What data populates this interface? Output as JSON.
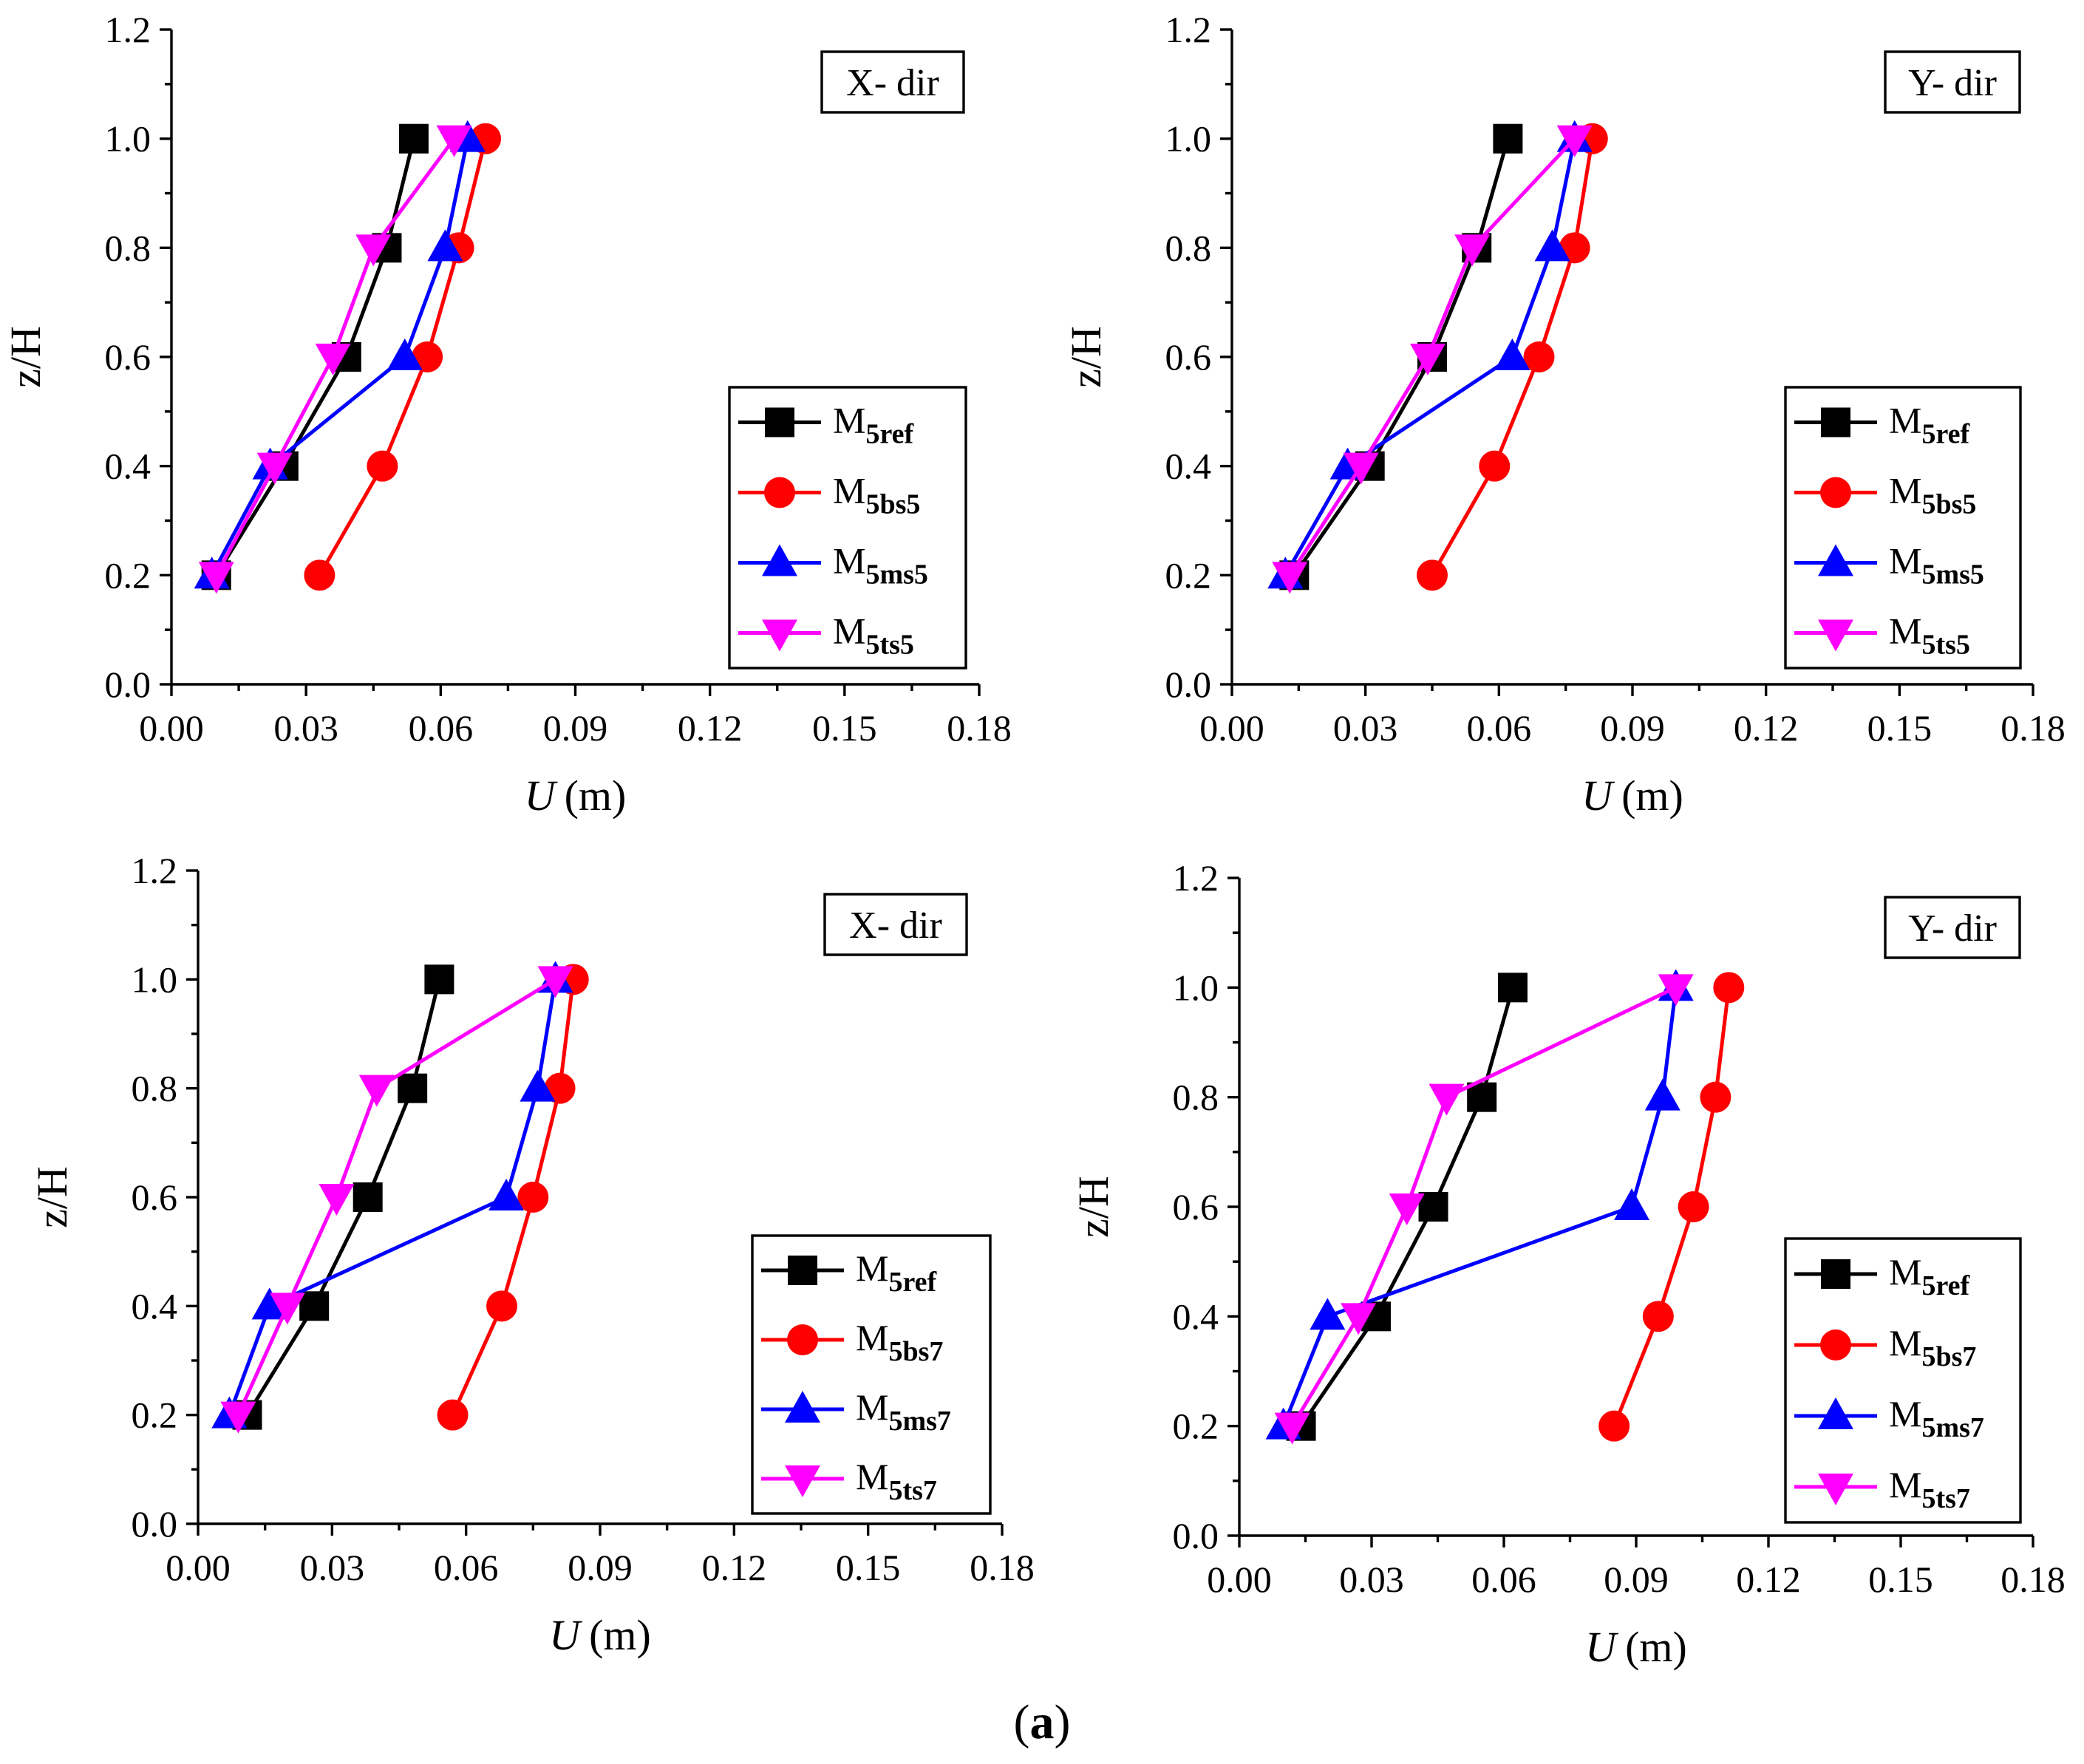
{
  "caption": {
    "open": "(",
    "letter": "a",
    "close": ")"
  },
  "colors": {
    "M5ref": "#000000",
    "M5bs": "#ff0000",
    "M5ms": "#0000ff",
    "M5ts": "#ff00ff"
  },
  "chart_data": [
    {
      "type": "line",
      "direction_label": "X- dir",
      "xlabel_italic": "U",
      "xlabel_unit": "(m)",
      "ylabel": "z/H",
      "xlim": [
        0.0,
        0.18
      ],
      "ylim": [
        0.0,
        1.2
      ],
      "xticks": [
        "0.00",
        "0.03",
        "0.06",
        "0.09",
        "0.12",
        "0.15",
        "0.18"
      ],
      "yticks": [
        "0.0",
        "0.2",
        "0.4",
        "0.6",
        "0.8",
        "1.0",
        "1.2"
      ],
      "legend_position": "right",
      "series": [
        {
          "base": "M",
          "sub": "5ref",
          "marker": "square",
          "color": "#000000",
          "points": [
            [
              0.01,
              0.2
            ],
            [
              0.025,
              0.4
            ],
            [
              0.039,
              0.6
            ],
            [
              0.048,
              0.8
            ],
            [
              0.054,
              1.0
            ]
          ]
        },
        {
          "base": "M",
          "sub": "5bs5",
          "marker": "circle",
          "color": "#ff0000",
          "points": [
            [
              0.033,
              0.2
            ],
            [
              0.047,
              0.4
            ],
            [
              0.057,
              0.6
            ],
            [
              0.064,
              0.8
            ],
            [
              0.07,
              1.0
            ]
          ]
        },
        {
          "base": "M",
          "sub": "5ms5",
          "marker": "triangle-up",
          "color": "#0000ff",
          "points": [
            [
              0.009,
              0.2
            ],
            [
              0.022,
              0.4
            ],
            [
              0.052,
              0.6
            ],
            [
              0.061,
              0.8
            ],
            [
              0.066,
              1.0
            ]
          ]
        },
        {
          "base": "M",
          "sub": "5ts5",
          "marker": "triangle-down",
          "color": "#ff00ff",
          "points": [
            [
              0.01,
              0.2
            ],
            [
              0.023,
              0.4
            ],
            [
              0.036,
              0.6
            ],
            [
              0.045,
              0.8
            ],
            [
              0.063,
              1.0
            ]
          ]
        }
      ]
    },
    {
      "type": "line",
      "direction_label": "Y- dir",
      "xlabel_italic": "U",
      "xlabel_unit": "(m)",
      "ylabel": "z/H",
      "xlim": [
        0.0,
        0.18
      ],
      "ylim": [
        0.0,
        1.2
      ],
      "xticks": [
        "0.00",
        "0.03",
        "0.06",
        "0.09",
        "0.12",
        "0.15",
        "0.18"
      ],
      "yticks": [
        "0.0",
        "0.2",
        "0.4",
        "0.6",
        "0.8",
        "1.0",
        "1.2"
      ],
      "legend_position": "right",
      "series": [
        {
          "base": "M",
          "sub": "5ref",
          "marker": "square",
          "color": "#000000",
          "points": [
            [
              0.014,
              0.2
            ],
            [
              0.031,
              0.4
            ],
            [
              0.045,
              0.6
            ],
            [
              0.055,
              0.8
            ],
            [
              0.062,
              1.0
            ]
          ]
        },
        {
          "base": "M",
          "sub": "5bs5",
          "marker": "circle",
          "color": "#ff0000",
          "points": [
            [
              0.045,
              0.2
            ],
            [
              0.059,
              0.4
            ],
            [
              0.069,
              0.6
            ],
            [
              0.077,
              0.8
            ],
            [
              0.081,
              1.0
            ]
          ]
        },
        {
          "base": "M",
          "sub": "5ms5",
          "marker": "triangle-up",
          "color": "#0000ff",
          "points": [
            [
              0.012,
              0.2
            ],
            [
              0.026,
              0.4
            ],
            [
              0.063,
              0.6
            ],
            [
              0.072,
              0.8
            ],
            [
              0.077,
              1.0
            ]
          ]
        },
        {
          "base": "M",
          "sub": "5ts5",
          "marker": "triangle-down",
          "color": "#ff00ff",
          "points": [
            [
              0.013,
              0.2
            ],
            [
              0.029,
              0.4
            ],
            [
              0.044,
              0.6
            ],
            [
              0.054,
              0.8
            ],
            [
              0.077,
              1.0
            ]
          ]
        }
      ]
    },
    {
      "type": "line",
      "direction_label": "X- dir",
      "xlabel_italic": "U",
      "xlabel_unit": "(m)",
      "ylabel": "z/H",
      "xlim": [
        0.0,
        0.18
      ],
      "ylim": [
        0.0,
        1.2
      ],
      "xticks": [
        "0.00",
        "0.03",
        "0.06",
        "0.09",
        "0.12",
        "0.15",
        "0.18"
      ],
      "yticks": [
        "0.0",
        "0.2",
        "0.4",
        "0.6",
        "0.8",
        "1.0",
        "1.2"
      ],
      "legend_position": "right",
      "series": [
        {
          "base": "M",
          "sub": "5ref",
          "marker": "square",
          "color": "#000000",
          "points": [
            [
              0.011,
              0.2
            ],
            [
              0.026,
              0.4
            ],
            [
              0.038,
              0.6
            ],
            [
              0.048,
              0.8
            ],
            [
              0.054,
              1.0
            ]
          ]
        },
        {
          "base": "M",
          "sub": "5bs7",
          "marker": "circle",
          "color": "#ff0000",
          "points": [
            [
              0.057,
              0.2
            ],
            [
              0.068,
              0.4
            ],
            [
              0.075,
              0.6
            ],
            [
              0.081,
              0.8
            ],
            [
              0.084,
              1.0
            ]
          ]
        },
        {
          "base": "M",
          "sub": "5ms7",
          "marker": "triangle-up",
          "color": "#0000ff",
          "points": [
            [
              0.007,
              0.2
            ],
            [
              0.016,
              0.4
            ],
            [
              0.069,
              0.6
            ],
            [
              0.076,
              0.8
            ],
            [
              0.08,
              1.0
            ]
          ]
        },
        {
          "base": "M",
          "sub": "5ts7",
          "marker": "triangle-down",
          "color": "#ff00ff",
          "points": [
            [
              0.009,
              0.2
            ],
            [
              0.02,
              0.4
            ],
            [
              0.031,
              0.6
            ],
            [
              0.04,
              0.8
            ],
            [
              0.08,
              1.0
            ]
          ]
        }
      ]
    },
    {
      "type": "line",
      "direction_label": "Y- dir",
      "xlabel_italic": "U",
      "xlabel_unit": "(m)",
      "ylabel": "z/H",
      "xlim": [
        0.0,
        0.18
      ],
      "ylim": [
        0.0,
        1.2
      ],
      "xticks": [
        "0.00",
        "0.03",
        "0.06",
        "0.09",
        "0.12",
        "0.15",
        "0.18"
      ],
      "yticks": [
        "0.0",
        "0.2",
        "0.4",
        "0.6",
        "0.8",
        "1.0",
        "1.2"
      ],
      "legend_position": "right",
      "series": [
        {
          "base": "M",
          "sub": "5ref",
          "marker": "square",
          "color": "#000000",
          "points": [
            [
              0.014,
              0.2
            ],
            [
              0.031,
              0.4
            ],
            [
              0.044,
              0.6
            ],
            [
              0.055,
              0.8
            ],
            [
              0.062,
              1.0
            ]
          ]
        },
        {
          "base": "M",
          "sub": "5bs7",
          "marker": "circle",
          "color": "#ff0000",
          "points": [
            [
              0.085,
              0.2
            ],
            [
              0.095,
              0.4
            ],
            [
              0.103,
              0.6
            ],
            [
              0.108,
              0.8
            ],
            [
              0.111,
              1.0
            ]
          ]
        },
        {
          "base": "M",
          "sub": "5ms7",
          "marker": "triangle-up",
          "color": "#0000ff",
          "points": [
            [
              0.01,
              0.2
            ],
            [
              0.02,
              0.4
            ],
            [
              0.089,
              0.6
            ],
            [
              0.096,
              0.8
            ],
            [
              0.099,
              1.0
            ]
          ]
        },
        {
          "base": "M",
          "sub": "5ts7",
          "marker": "triangle-down",
          "color": "#ff00ff",
          "points": [
            [
              0.012,
              0.2
            ],
            [
              0.027,
              0.4
            ],
            [
              0.038,
              0.6
            ],
            [
              0.047,
              0.8
            ],
            [
              0.099,
              1.0
            ]
          ]
        }
      ]
    }
  ]
}
